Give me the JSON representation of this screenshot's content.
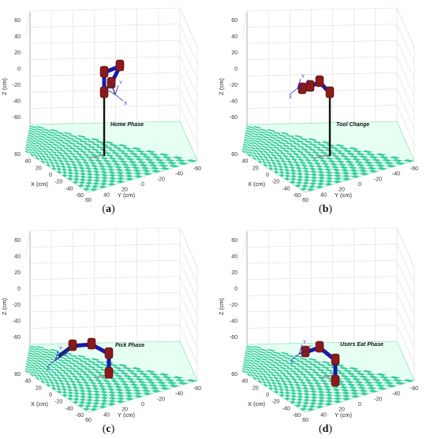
{
  "axes": {
    "z_label": "Z (cm)",
    "x_label": "X (cm)",
    "y_label": "Y (cm)",
    "z_ticks": [
      "60",
      "40",
      "20",
      "0",
      "-20",
      "-40",
      "-60"
    ],
    "x_ticks": [
      "60",
      "40",
      "20",
      "0",
      "-20",
      "-40",
      "-60"
    ],
    "y_ticks": [
      "60",
      "40",
      "20",
      "0",
      "-20",
      "-40",
      "-60"
    ]
  },
  "panels": [
    {
      "id": "a",
      "phase": "Home Phase",
      "caption_letter": "a",
      "pose": "home"
    },
    {
      "id": "b",
      "phase": "Tool Change",
      "caption_letter": "b",
      "pose": "tool"
    },
    {
      "id": "c",
      "phase": "Pick Phase",
      "caption_letter": "c",
      "pose": "pick"
    },
    {
      "id": "d",
      "phase": "Users Eat Phase",
      "caption_letter": "d",
      "pose": "eat"
    }
  ],
  "frame_axis_letters": [
    "X",
    "Y",
    "Z"
  ],
  "colors": {
    "floor_green": "#33cc99",
    "floor_light": "#e6fff3",
    "link_blue": "#1a1aa8",
    "joint_red": "#8b1a1a",
    "pole": "#111111",
    "grid": "#dddddd"
  }
}
